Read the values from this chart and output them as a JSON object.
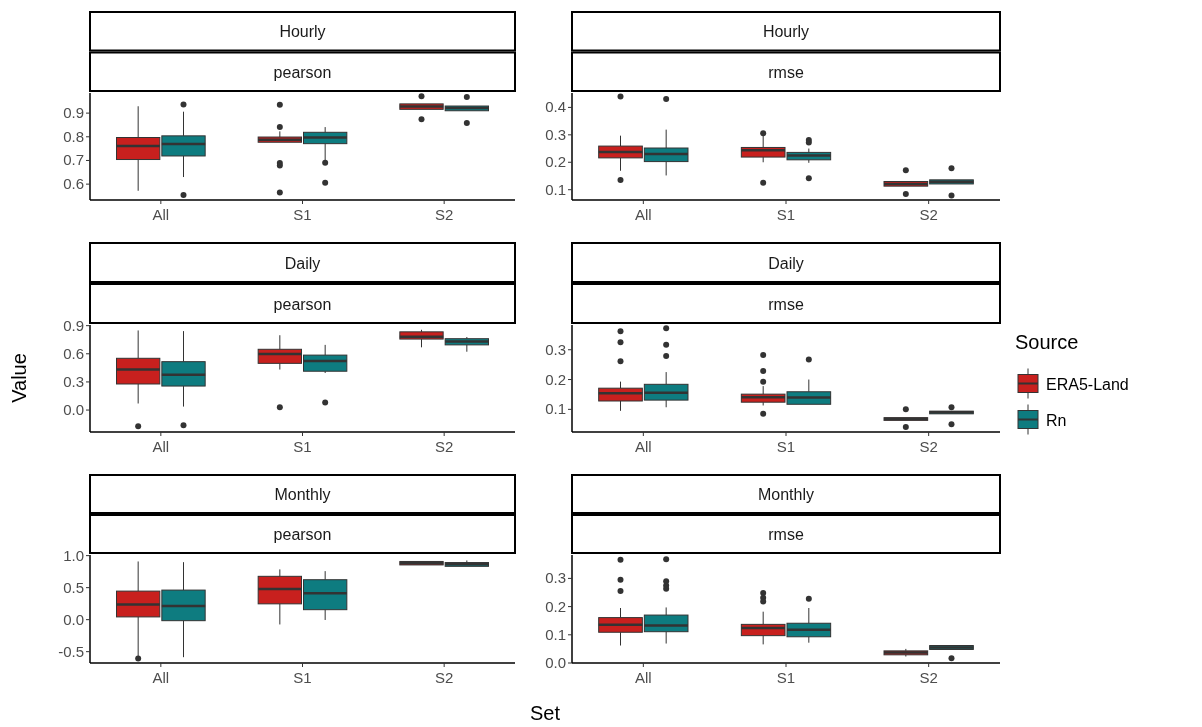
{
  "chart_data": [
    {
      "type": "box",
      "title": "Hourly",
      "subtitle": "pearson",
      "categories": [
        "All",
        "S1",
        "S2"
      ],
      "ylim": [
        0.533,
        0.985
      ],
      "yticks": [
        0.6,
        0.7,
        0.8,
        0.9
      ],
      "grid": false,
      "legend": false,
      "series": [
        {
          "color": "#c8201e",
          "boxes": [
            {
              "low": 0.572,
              "q1": 0.704,
              "median": 0.761,
              "q3": 0.797,
              "high": 0.929
            },
            {
              "low": 0.777,
              "q1": 0.777,
              "median": 0.787,
              "q3": 0.799,
              "high": 0.823,
              "outliers": [
                0.935,
                0.841,
                0.689,
                0.679,
                0.565
              ]
            },
            {
              "low": 0.916,
              "q1": 0.916,
              "median": 0.928,
              "q3": 0.939,
              "high": 0.939,
              "outliers": [
                0.971,
                0.874
              ]
            }
          ]
        },
        {
          "color": "#0e7c80",
          "boxes": [
            {
              "low": 0.63,
              "q1": 0.719,
              "median": 0.77,
              "q3": 0.804,
              "high": 0.906,
              "outliers": [
                0.936,
                0.554
              ]
            },
            {
              "low": 0.7,
              "q1": 0.771,
              "median": 0.797,
              "q3": 0.819,
              "high": 0.841,
              "outliers": [
                0.69,
                0.606
              ]
            },
            {
              "low": 0.91,
              "q1": 0.91,
              "median": 0.922,
              "q3": 0.93,
              "high": 0.93,
              "outliers": [
                0.968,
                0.858
              ]
            }
          ]
        }
      ]
    },
    {
      "type": "box",
      "title": "Hourly",
      "subtitle": "rmse",
      "categories": [
        "All",
        "S1",
        "S2"
      ],
      "ylim": [
        0.0625,
        0.4525
      ],
      "yticks": [
        0.1,
        0.2,
        0.3,
        0.4
      ],
      "grid": false,
      "legend": false,
      "series": [
        {
          "color": "#c8201e",
          "boxes": [
            {
              "low": 0.169,
              "q1": 0.216,
              "median": 0.2375,
              "q3": 0.259,
              "high": 0.297,
              "outliers": [
                0.44,
                0.135
              ]
            },
            {
              "low": 0.2,
              "q1": 0.219,
              "median": 0.244,
              "q3": 0.254,
              "high": 0.3,
              "outliers": [
                0.306,
                0.125
              ]
            },
            {
              "low": 0.113,
              "q1": 0.113,
              "median": 0.121,
              "q3": 0.13,
              "high": 0.13,
              "outliers": [
                0.171,
                0.084
              ]
            }
          ]
        },
        {
          "color": "#0e7c80",
          "boxes": [
            {
              "low": 0.152,
              "q1": 0.2025,
              "median": 0.23,
              "q3": 0.252,
              "high": 0.319,
              "outliers": [
                0.431
              ]
            },
            {
              "low": 0.198,
              "q1": 0.209,
              "median": 0.225,
              "q3": 0.236,
              "high": 0.25,
              "outliers": [
                0.281,
                0.272,
                0.142
              ]
            },
            {
              "low": 0.121,
              "q1": 0.121,
              "median": 0.129,
              "q3": 0.136,
              "high": 0.136,
              "outliers": [
                0.178,
                0.079
              ]
            }
          ]
        }
      ]
    },
    {
      "type": "box",
      "title": "Daily",
      "subtitle": "pearson",
      "ylabel": "Value",
      "categories": [
        "All",
        "S1",
        "S2"
      ],
      "ylim": [
        -0.234,
        0.907
      ],
      "yticks": [
        {
          "value": 0,
          "label": "0.0"
        },
        0.3,
        0.6,
        0.9
      ],
      "grid": false,
      "legend": false,
      "series": [
        {
          "color": "#c8201e",
          "boxes": [
            {
              "low": 0.07,
              "q1": 0.278,
              "median": 0.432,
              "q3": 0.552,
              "high": 0.849,
              "outliers": [
                -0.172
              ]
            },
            {
              "low": 0.432,
              "q1": 0.498,
              "median": 0.597,
              "q3": 0.648,
              "high": 0.798,
              "outliers": [
                0.029
              ]
            },
            {
              "low": 0.669,
              "q1": 0.757,
              "median": 0.783,
              "q3": 0.834,
              "high": 0.856
            }
          ]
        },
        {
          "color": "#0e7c80",
          "boxes": [
            {
              "low": 0.037,
              "q1": 0.256,
              "median": 0.377,
              "q3": 0.516,
              "high": 0.842,
              "outliers": [
                -0.161
              ]
            },
            {
              "low": 0.395,
              "q1": 0.414,
              "median": 0.523,
              "q3": 0.586,
              "high": 0.695,
              "outliers": [
                0.081
              ]
            },
            {
              "low": 0.622,
              "q1": 0.695,
              "median": 0.732,
              "q3": 0.761,
              "high": 0.779
            }
          ]
        }
      ]
    },
    {
      "type": "box",
      "title": "Daily",
      "subtitle": "rmse",
      "categories": [
        "All",
        "S1",
        "S2"
      ],
      "ylim": [
        0.024,
        0.383
      ],
      "yticks": [
        0.1,
        0.2,
        0.3
      ],
      "grid": false,
      "legend": "right",
      "legend_title": "Source",
      "series": [
        {
          "name": "ERA5-Land",
          "color": "#c8201e",
          "boxes": [
            {
              "low": 0.095,
              "q1": 0.128,
              "median": 0.154,
              "q3": 0.171,
              "high": 0.193,
              "outliers": [
                0.362,
                0.325,
                0.261
              ]
            },
            {
              "low": 0.113,
              "q1": 0.124,
              "median": 0.141,
              "q3": 0.151,
              "high": 0.178,
              "outliers": [
                0.282,
                0.229,
                0.193,
                0.085
              ]
            },
            {
              "low": 0.063,
              "q1": 0.063,
              "median": 0.0685,
              "q3": 0.072,
              "high": 0.072,
              "outliers": [
                0.1,
                0.041
              ]
            }
          ]
        },
        {
          "name": "Rn",
          "color": "#0e7c80",
          "boxes": [
            {
              "low": 0.107,
              "q1": 0.131,
              "median": 0.156,
              "q3": 0.184,
              "high": 0.225,
              "outliers": [
                0.372,
                0.317,
                0.279
              ]
            },
            {
              "low": 0.117,
              "q1": 0.117,
              "median": 0.14,
              "q3": 0.159,
              "high": 0.2,
              "outliers": [
                0.267
              ]
            },
            {
              "low": 0.085,
              "q1": 0.085,
              "median": 0.09,
              "q3": 0.094,
              "high": 0.094,
              "outliers": [
                0.107,
                0.05
              ]
            }
          ]
        }
      ]
    },
    {
      "type": "box",
      "title": "Monthly",
      "subtitle": "pearson",
      "xlabel": "Set",
      "categories": [
        "All",
        "S1",
        "S2"
      ],
      "ylim": [
        -0.677,
        1.01
      ],
      "yticks": [
        {
          "value": -0.5,
          "label": "-0.5"
        },
        {
          "value": 0,
          "label": "0.0"
        },
        0.5,
        {
          "value": 1,
          "label": "1.0"
        }
      ],
      "grid": false,
      "legend": false,
      "series": [
        {
          "color": "#c8201e",
          "boxes": [
            {
              "low": -0.57,
              "q1": 0.043,
              "median": 0.237,
              "q3": 0.446,
              "high": 0.909,
              "outliers": [
                -0.608
              ]
            },
            {
              "low": -0.075,
              "q1": 0.247,
              "median": 0.478,
              "q3": 0.677,
              "high": 0.785
            },
            {
              "low": 0.855,
              "q1": 0.855,
              "median": 0.882,
              "q3": 0.909,
              "high": 0.909
            }
          ]
        },
        {
          "color": "#0e7c80",
          "boxes": [
            {
              "low": -0.586,
              "q1": -0.016,
              "median": 0.215,
              "q3": 0.462,
              "high": 0.898
            },
            {
              "low": -0.005,
              "q1": 0.156,
              "median": 0.414,
              "q3": 0.624,
              "high": 0.758
            },
            {
              "low": 0.833,
              "q1": 0.833,
              "median": 0.866,
              "q3": 0.892,
              "high": 0.925
            }
          ]
        }
      ]
    },
    {
      "type": "box",
      "title": "Monthly",
      "subtitle": "rmse",
      "categories": [
        "All",
        "S1",
        "S2"
      ],
      "ylim": [
        0,
        0.383
      ],
      "yticks": [
        {
          "value": 0,
          "label": "0.0"
        },
        0.1,
        0.2,
        0.3
      ],
      "grid": false,
      "legend": false,
      "series": [
        {
          "color": "#c8201e",
          "boxes": [
            {
              "low": 0.062,
              "q1": 0.109,
              "median": 0.136,
              "q3": 0.161,
              "high": 0.195,
              "outliers": [
                0.366,
                0.295,
                0.255
              ]
            },
            {
              "low": 0.066,
              "q1": 0.097,
              "median": 0.124,
              "q3": 0.137,
              "high": 0.182,
              "outliers": [
                0.248,
                0.231,
                0.218
              ]
            },
            {
              "low": 0.023,
              "q1": 0.029,
              "median": 0.037,
              "q3": 0.043,
              "high": 0.05
            }
          ]
        },
        {
          "color": "#0e7c80",
          "boxes": [
            {
              "low": 0.069,
              "q1": 0.111,
              "median": 0.133,
              "q3": 0.17,
              "high": 0.197,
              "outliers": [
                0.368,
                0.29,
                0.275,
                0.263
              ]
            },
            {
              "low": 0.072,
              "q1": 0.093,
              "median": 0.118,
              "q3": 0.141,
              "high": 0.195,
              "outliers": [
                0.228
              ]
            },
            {
              "low": 0.048,
              "q1": 0.048,
              "median": 0.055,
              "q3": 0.062,
              "high": 0.062,
              "outliers": [
                0.017
              ]
            }
          ]
        }
      ]
    }
  ]
}
